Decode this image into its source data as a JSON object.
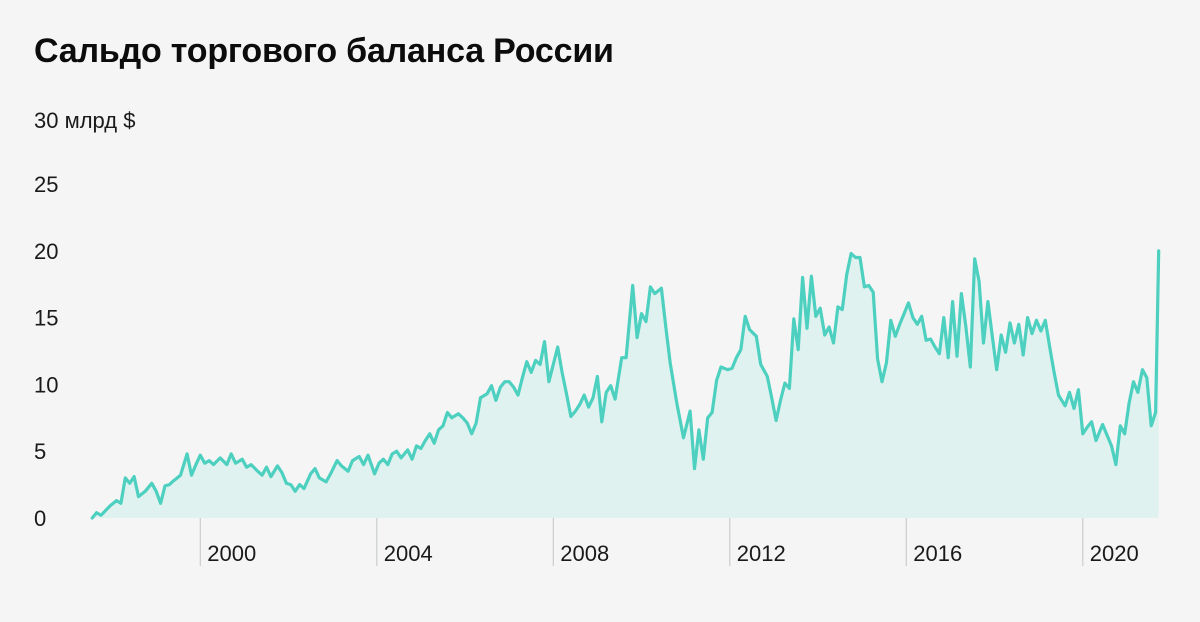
{
  "title": "Сальдо торгового баланса России",
  "colors": {
    "background": "#f5f5f5",
    "line": "#4dd0bf",
    "area": "#dff2ef",
    "marker": "#c9ceca",
    "text": "#0c0c0c"
  },
  "chart_data": {
    "type": "area",
    "title": "Сальдо торгового баланса России",
    "unit": "млрд $",
    "ylim": [
      0,
      30
    ],
    "yticks": [
      {
        "value": 0,
        "label": "0"
      },
      {
        "value": 5,
        "label": "5"
      },
      {
        "value": 10,
        "label": "10"
      },
      {
        "value": 15,
        "label": "15"
      },
      {
        "value": 20,
        "label": "20"
      },
      {
        "value": 25,
        "label": "25"
      },
      {
        "value": 30,
        "label": "30 млрд $"
      }
    ],
    "xlim": [
      1997.5,
      2021.75
    ],
    "xticks": [
      {
        "value": 2000,
        "label": "2000"
      },
      {
        "value": 2004,
        "label": "2004"
      },
      {
        "value": 2008,
        "label": "2008"
      },
      {
        "value": 2012,
        "label": "2012"
      },
      {
        "value": 2016,
        "label": "2016"
      },
      {
        "value": 2020,
        "label": "2020"
      }
    ],
    "grid": false,
    "legend": "none",
    "series": [
      {
        "values": [
          [
            1997.55,
            0.0
          ],
          [
            1997.65,
            0.4
          ],
          [
            1997.75,
            0.2
          ],
          [
            1997.95,
            0.9
          ],
          [
            1998.1,
            1.3
          ],
          [
            1998.2,
            1.1
          ],
          [
            1998.3,
            3.0
          ],
          [
            1998.4,
            2.6
          ],
          [
            1998.5,
            3.1
          ],
          [
            1998.6,
            1.6
          ],
          [
            1998.75,
            2.0
          ],
          [
            1998.9,
            2.6
          ],
          [
            1999.0,
            2.0
          ],
          [
            1999.1,
            1.1
          ],
          [
            1999.2,
            2.4
          ],
          [
            1999.3,
            2.5
          ],
          [
            1999.4,
            2.8
          ],
          [
            1999.55,
            3.2
          ],
          [
            1999.7,
            4.8
          ],
          [
            1999.8,
            3.2
          ],
          [
            1999.9,
            4.0
          ],
          [
            2000.0,
            4.7
          ],
          [
            2000.1,
            4.1
          ],
          [
            2000.2,
            4.3
          ],
          [
            2000.3,
            4.0
          ],
          [
            2000.45,
            4.5
          ],
          [
            2000.6,
            4.0
          ],
          [
            2000.7,
            4.8
          ],
          [
            2000.8,
            4.1
          ],
          [
            2000.95,
            4.4
          ],
          [
            2001.05,
            3.8
          ],
          [
            2001.15,
            4.0
          ],
          [
            2001.3,
            3.5
          ],
          [
            2001.4,
            3.2
          ],
          [
            2001.5,
            3.8
          ],
          [
            2001.6,
            3.1
          ],
          [
            2001.75,
            3.9
          ],
          [
            2001.85,
            3.4
          ],
          [
            2001.95,
            2.6
          ],
          [
            2002.05,
            2.5
          ],
          [
            2002.15,
            2.0
          ],
          [
            2002.25,
            2.5
          ],
          [
            2002.35,
            2.2
          ],
          [
            2002.5,
            3.3
          ],
          [
            2002.6,
            3.7
          ],
          [
            2002.7,
            3.0
          ],
          [
            2002.85,
            2.7
          ],
          [
            2002.95,
            3.3
          ],
          [
            2003.1,
            4.3
          ],
          [
            2003.2,
            3.9
          ],
          [
            2003.35,
            3.5
          ],
          [
            2003.45,
            4.3
          ],
          [
            2003.6,
            4.6
          ],
          [
            2003.7,
            4.0
          ],
          [
            2003.8,
            4.7
          ],
          [
            2003.95,
            3.3
          ],
          [
            2004.05,
            4.1
          ],
          [
            2004.15,
            4.4
          ],
          [
            2004.25,
            4.0
          ],
          [
            2004.35,
            4.8
          ],
          [
            2004.45,
            5.0
          ],
          [
            2004.55,
            4.5
          ],
          [
            2004.7,
            5.1
          ],
          [
            2004.8,
            4.4
          ],
          [
            2004.9,
            5.4
          ],
          [
            2005.0,
            5.2
          ],
          [
            2005.1,
            5.8
          ],
          [
            2005.2,
            6.3
          ],
          [
            2005.3,
            5.6
          ],
          [
            2005.4,
            6.6
          ],
          [
            2005.5,
            6.9
          ],
          [
            2005.6,
            7.9
          ],
          [
            2005.7,
            7.5
          ],
          [
            2005.85,
            7.8
          ],
          [
            2005.95,
            7.5
          ],
          [
            2006.05,
            7.1
          ],
          [
            2006.15,
            6.3
          ],
          [
            2006.25,
            7.1
          ],
          [
            2006.35,
            9.0
          ],
          [
            2006.5,
            9.3
          ],
          [
            2006.6,
            9.9
          ],
          [
            2006.7,
            8.8
          ],
          [
            2006.8,
            9.8
          ],
          [
            2006.9,
            10.2
          ],
          [
            2007.0,
            10.2
          ],
          [
            2007.1,
            9.8
          ],
          [
            2007.2,
            9.2
          ],
          [
            2007.3,
            10.5
          ],
          [
            2007.4,
            11.7
          ],
          [
            2007.5,
            10.9
          ],
          [
            2007.6,
            11.8
          ],
          [
            2007.7,
            11.5
          ],
          [
            2007.8,
            13.2
          ],
          [
            2007.9,
            10.2
          ],
          [
            2008.0,
            11.5
          ],
          [
            2008.1,
            12.8
          ],
          [
            2008.2,
            10.9
          ],
          [
            2008.3,
            9.3
          ],
          [
            2008.4,
            7.6
          ],
          [
            2008.5,
            8.0
          ],
          [
            2008.6,
            8.5
          ],
          [
            2008.7,
            9.2
          ],
          [
            2008.8,
            8.3
          ],
          [
            2008.9,
            9.0
          ],
          [
            2009.0,
            10.6
          ],
          [
            2009.1,
            7.2
          ],
          [
            2009.2,
            9.4
          ],
          [
            2009.3,
            9.9
          ],
          [
            2009.4,
            8.9
          ],
          [
            2009.55,
            12.0
          ],
          [
            2009.65,
            12.0
          ],
          [
            2009.8,
            17.4
          ],
          [
            2009.9,
            13.5
          ],
          [
            2010.0,
            15.3
          ],
          [
            2010.1,
            14.7
          ],
          [
            2010.2,
            17.3
          ],
          [
            2010.3,
            16.8
          ],
          [
            2010.45,
            17.2
          ],
          [
            2010.55,
            14.3
          ],
          [
            2010.65,
            11.6
          ],
          [
            2010.8,
            8.6
          ],
          [
            2010.95,
            6.0
          ],
          [
            2011.1,
            8.0
          ],
          [
            2011.2,
            3.7
          ],
          [
            2011.3,
            6.6
          ],
          [
            2011.4,
            4.4
          ],
          [
            2011.5,
            7.5
          ],
          [
            2011.6,
            7.9
          ],
          [
            2011.7,
            10.3
          ],
          [
            2011.8,
            11.3
          ],
          [
            2011.95,
            11.1
          ],
          [
            2012.05,
            11.2
          ],
          [
            2012.15,
            12.0
          ],
          [
            2012.25,
            12.6
          ],
          [
            2012.35,
            15.1
          ],
          [
            2012.45,
            14.1
          ],
          [
            2012.6,
            13.6
          ],
          [
            2012.7,
            11.5
          ],
          [
            2012.85,
            10.6
          ],
          [
            2012.95,
            9.0
          ],
          [
            2013.05,
            7.3
          ],
          [
            2013.15,
            8.8
          ],
          [
            2013.25,
            10.1
          ],
          [
            2013.35,
            9.7
          ],
          [
            2013.45,
            14.9
          ],
          [
            2013.55,
            12.6
          ],
          [
            2013.65,
            18.0
          ],
          [
            2013.75,
            14.2
          ],
          [
            2013.85,
            18.1
          ],
          [
            2013.95,
            15.1
          ],
          [
            2014.05,
            15.7
          ],
          [
            2014.15,
            13.7
          ],
          [
            2014.25,
            14.3
          ],
          [
            2014.35,
            13.1
          ],
          [
            2014.45,
            15.8
          ],
          [
            2014.55,
            15.6
          ],
          [
            2014.65,
            18.2
          ],
          [
            2014.75,
            19.8
          ],
          [
            2014.85,
            19.5
          ],
          [
            2014.95,
            19.5
          ],
          [
            2015.05,
            17.3
          ],
          [
            2015.15,
            17.4
          ],
          [
            2015.25,
            16.9
          ],
          [
            2015.35,
            11.9
          ],
          [
            2015.45,
            10.2
          ],
          [
            2015.55,
            11.6
          ],
          [
            2015.65,
            14.8
          ],
          [
            2015.75,
            13.6
          ],
          [
            2015.85,
            14.5
          ],
          [
            2015.95,
            15.3
          ],
          [
            2016.05,
            16.1
          ],
          [
            2016.15,
            15.0
          ],
          [
            2016.25,
            14.5
          ],
          [
            2016.35,
            15.1
          ],
          [
            2016.45,
            13.3
          ],
          [
            2016.55,
            13.4
          ],
          [
            2016.65,
            12.8
          ],
          [
            2016.75,
            12.3
          ],
          [
            2016.85,
            15.0
          ],
          [
            2016.95,
            12.0
          ],
          [
            2017.05,
            16.2
          ],
          [
            2017.15,
            12.1
          ],
          [
            2017.25,
            16.8
          ],
          [
            2017.35,
            14.3
          ],
          [
            2017.45,
            11.3
          ],
          [
            2017.55,
            19.4
          ],
          [
            2017.65,
            17.7
          ],
          [
            2017.75,
            13.1
          ],
          [
            2017.85,
            16.2
          ],
          [
            2017.95,
            13.6
          ],
          [
            2018.05,
            11.1
          ],
          [
            2018.15,
            13.7
          ],
          [
            2018.25,
            12.4
          ],
          [
            2018.35,
            14.6
          ],
          [
            2018.45,
            13.1
          ],
          [
            2018.55,
            14.5
          ],
          [
            2018.65,
            12.2
          ],
          [
            2018.75,
            15.0
          ],
          [
            2018.85,
            13.8
          ],
          [
            2018.95,
            14.8
          ],
          [
            2019.05,
            14.0
          ],
          [
            2019.15,
            14.8
          ],
          [
            2019.25,
            12.8
          ],
          [
            2019.35,
            10.9
          ],
          [
            2019.45,
            9.2
          ],
          [
            2019.6,
            8.4
          ],
          [
            2019.7,
            9.4
          ],
          [
            2019.8,
            8.2
          ],
          [
            2019.9,
            9.6
          ],
          [
            2020.0,
            6.3
          ],
          [
            2020.1,
            6.8
          ],
          [
            2020.2,
            7.2
          ],
          [
            2020.3,
            5.8
          ],
          [
            2020.45,
            7.0
          ],
          [
            2020.55,
            6.2
          ],
          [
            2020.65,
            5.4
          ],
          [
            2020.75,
            4.0
          ],
          [
            2020.85,
            6.9
          ],
          [
            2020.95,
            6.3
          ],
          [
            2021.05,
            8.6
          ],
          [
            2021.15,
            10.2
          ],
          [
            2021.25,
            9.4
          ],
          [
            2021.35,
            11.1
          ],
          [
            2021.45,
            10.5
          ],
          [
            2021.55,
            6.9
          ],
          [
            2021.65,
            7.9
          ],
          [
            2021.72,
            20.0
          ]
        ]
      }
    ]
  }
}
